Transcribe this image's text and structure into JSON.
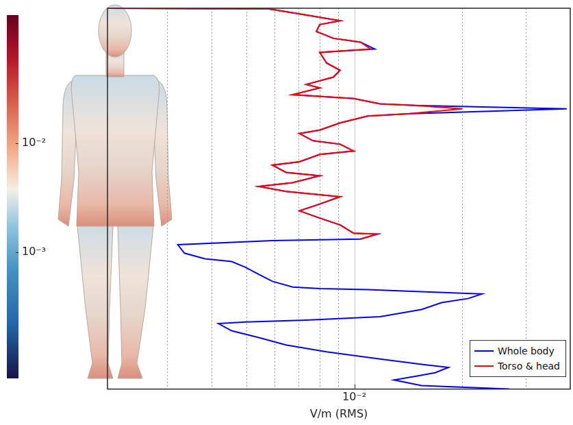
{
  "chart_data": {
    "type": "line",
    "x_label": "V/m (RMS)",
    "log": "x",
    "xlim": [
      0.00205,
      0.04
    ],
    "xticks": [
      {
        "value": 0.01,
        "label": "10⁻²"
      }
    ],
    "ylim": [
      0,
      1
    ],
    "tick_labels": "x",
    "grid": true,
    "legend": "lower right",
    "series": [
      {
        "name": "Whole body",
        "color": "#0000ff",
        "x": [
          0.00208,
          0.00578,
          0.00703,
          0.00913,
          0.00801,
          0.00784,
          0.00874,
          0.0104,
          0.0114,
          0.00801,
          0.00837,
          0.00913,
          0.00874,
          0.00735,
          0.00801,
          0.00673,
          0.00996,
          0.0118,
          0.0147,
          0.0391,
          0.0141,
          0.0109,
          0.00913,
          0.00801,
          0.00703,
          0.00767,
          0.00913,
          0.00996,
          0.00801,
          0.00703,
          0.00591,
          0.00645,
          0.00801,
          0.00673,
          0.00542,
          0.00645,
          0.00913,
          0.00801,
          0.00703,
          0.00801,
          0.00913,
          0.00996,
          0.0116,
          0.0104,
          0.00591,
          0.00322,
          0.00336,
          0.00383,
          0.00455,
          0.00497,
          0.00542,
          0.00591,
          0.00673,
          0.00801,
          0.0109,
          0.0141,
          0.0183,
          0.0227,
          0.0208,
          0.0175,
          0.0154,
          0.0118,
          0.00735,
          0.00497,
          0.00418,
          0.00455,
          0.00542,
          0.00645,
          0.00837,
          0.0118,
          0.0154,
          0.0183,
          0.0168,
          0.0147,
          0.0129,
          0.0154,
          0.027
        ],
        "y": [
          1.0,
          0.998,
          0.985,
          0.967,
          0.957,
          0.939,
          0.921,
          0.911,
          0.893,
          0.884,
          0.856,
          0.837,
          0.819,
          0.8,
          0.791,
          0.773,
          0.763,
          0.749,
          0.745,
          0.736,
          0.723,
          0.717,
          0.699,
          0.68,
          0.671,
          0.652,
          0.643,
          0.625,
          0.616,
          0.597,
          0.588,
          0.569,
          0.56,
          0.542,
          0.532,
          0.519,
          0.505,
          0.486,
          0.468,
          0.449,
          0.431,
          0.409,
          0.407,
          0.394,
          0.39,
          0.379,
          0.357,
          0.342,
          0.335,
          0.32,
          0.301,
          0.283,
          0.268,
          0.264,
          0.261,
          0.257,
          0.253,
          0.25,
          0.238,
          0.227,
          0.209,
          0.19,
          0.181,
          0.176,
          0.172,
          0.153,
          0.135,
          0.116,
          0.098,
          0.079,
          0.065,
          0.057,
          0.043,
          0.033,
          0.024,
          0.009,
          0.0
        ]
      },
      {
        "name": "Torso & head",
        "color": "#ff0000",
        "x": [
          0.00208,
          0.00578,
          0.00703,
          0.00913,
          0.00801,
          0.00784,
          0.00874,
          0.0104,
          0.0111,
          0.00801,
          0.00837,
          0.00913,
          0.00874,
          0.00735,
          0.00801,
          0.00673,
          0.00996,
          0.0118,
          0.0147,
          0.02,
          0.0141,
          0.0109,
          0.00913,
          0.00801,
          0.00703,
          0.00767,
          0.00913,
          0.00996,
          0.00801,
          0.00703,
          0.00591,
          0.00645,
          0.00801,
          0.00673,
          0.00542,
          0.00645,
          0.00913,
          0.00801,
          0.00703,
          0.00801,
          0.00913,
          0.00996,
          0.0116,
          0.0104
        ],
        "y": [
          1.0,
          0.998,
          0.985,
          0.967,
          0.957,
          0.939,
          0.921,
          0.911,
          0.893,
          0.884,
          0.856,
          0.837,
          0.819,
          0.8,
          0.791,
          0.773,
          0.763,
          0.749,
          0.745,
          0.736,
          0.723,
          0.717,
          0.699,
          0.68,
          0.671,
          0.652,
          0.643,
          0.625,
          0.616,
          0.597,
          0.588,
          0.569,
          0.56,
          0.542,
          0.532,
          0.519,
          0.505,
          0.486,
          0.468,
          0.449,
          0.431,
          0.409,
          0.407,
          0.394
        ]
      }
    ],
    "colorbar": {
      "range": [
        7e-05,
        0.15
      ],
      "log": true,
      "ticks": [
        {
          "value": 0.01,
          "label": "10⁻²"
        },
        {
          "value": 0.001,
          "label": "10⁻³"
        }
      ]
    }
  }
}
